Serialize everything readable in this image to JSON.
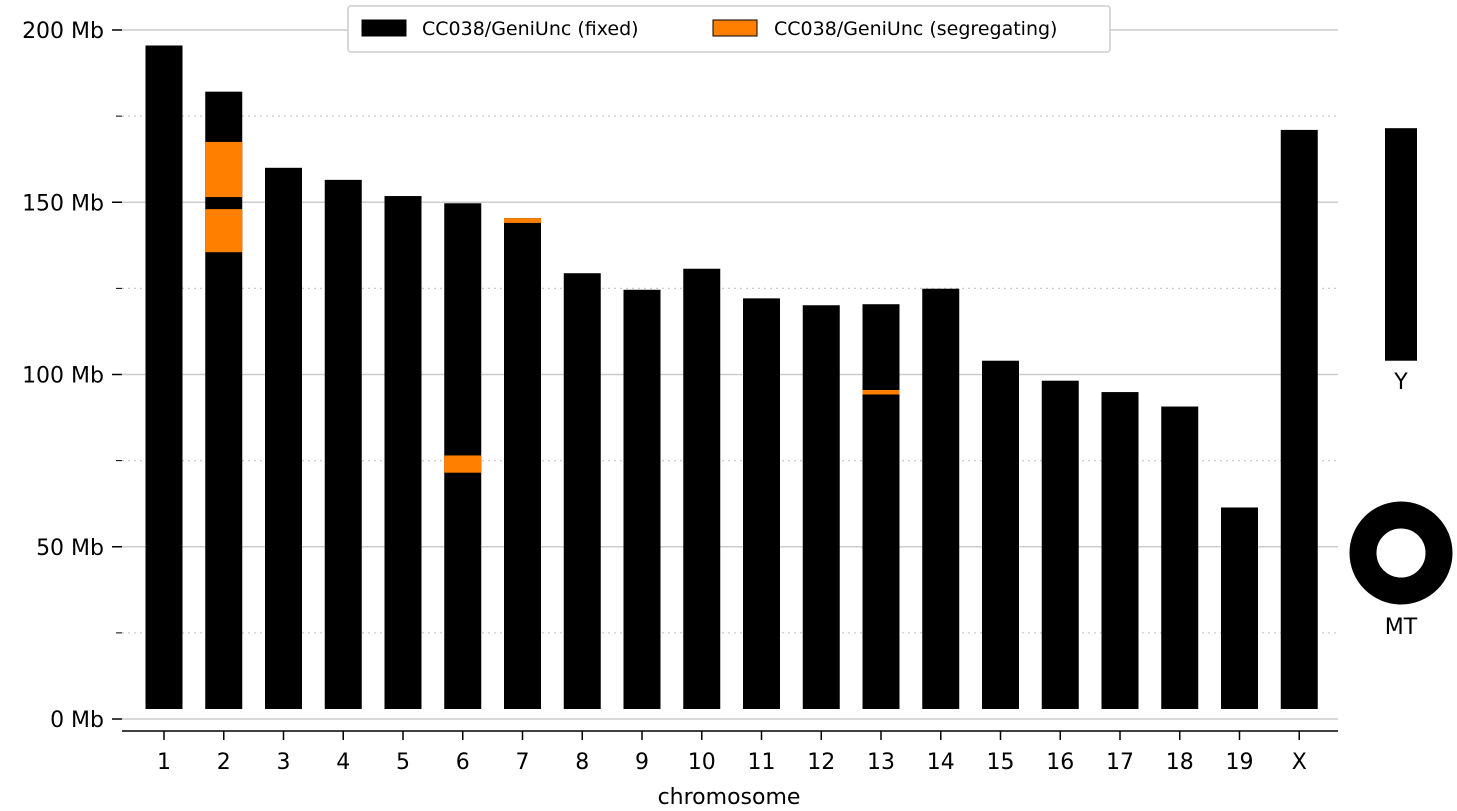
{
  "chart_data": {
    "type": "bar",
    "xlabel": "chromosome",
    "ylabel": "",
    "ylim": [
      0,
      200
    ],
    "y_unit": "Mb",
    "yticks": [
      {
        "value": 0,
        "label": "0 Mb"
      },
      {
        "value": 50,
        "label": "50 Mb"
      },
      {
        "value": 100,
        "label": "100 Mb"
      },
      {
        "value": 150,
        "label": "150 Mb"
      },
      {
        "value": 200,
        "label": "200 Mb"
      }
    ],
    "minor_grid": [
      25,
      75,
      125,
      175
    ],
    "legend_position": "top-center",
    "categories": [
      "1",
      "2",
      "3",
      "4",
      "5",
      "6",
      "7",
      "8",
      "9",
      "10",
      "11",
      "12",
      "13",
      "14",
      "15",
      "16",
      "17",
      "18",
      "19",
      "X"
    ],
    "series": [
      {
        "name": "CC038/GeniUnc (fixed)",
        "color": "#000000",
        "values": [
          195.5,
          182.1,
          160.0,
          156.5,
          151.8,
          149.7,
          145.4,
          129.4,
          124.6,
          130.7,
          122.1,
          120.1,
          120.4,
          124.9,
          104.0,
          98.2,
          94.9,
          90.7,
          61.4,
          171.0
        ]
      },
      {
        "name": "CC038/GeniUnc (segregating)",
        "color": "#ff8000",
        "segments": [
          {
            "category": "2",
            "start": 151.5,
            "end": 167.5
          },
          {
            "category": "2",
            "start": 135.5,
            "end": 148.0
          },
          {
            "category": "6",
            "start": 71.5,
            "end": 76.5
          },
          {
            "category": "7",
            "start": 144.0,
            "end": 145.4
          },
          {
            "category": "13",
            "start": 94.2,
            "end": 95.5
          }
        ]
      }
    ],
    "extra_chromosomes": [
      {
        "label": "Y",
        "start": 104.0,
        "end": 171.5,
        "color": "#000000"
      },
      {
        "label": "MT",
        "shape": "ring",
        "color": "#000000"
      }
    ]
  }
}
